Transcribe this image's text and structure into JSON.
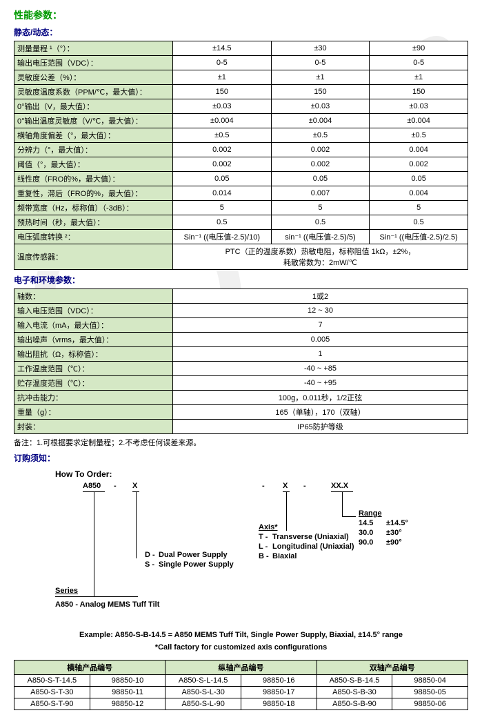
{
  "headings": {
    "perf": "性能参数：",
    "static_dynamic": "静态/动态：",
    "elec_env": "电子和环境参数：",
    "order": "订购须知："
  },
  "spec1": {
    "col_widths": [
      "230px",
      "auto",
      "auto",
      "auto"
    ],
    "rows": [
      {
        "label": "测量量程 ¹（°）：",
        "vals": [
          "±14.5",
          "±30",
          "±90"
        ]
      },
      {
        "label": "输出电压范围（VDC）：",
        "vals": [
          "0-5",
          "0-5",
          "0-5"
        ]
      },
      {
        "label": "灵敏度公差（%）：",
        "vals": [
          "±1",
          "±1",
          "±1"
        ]
      },
      {
        "label": "灵敏度温度系数（PPM/℃，最大值）：",
        "vals": [
          "150",
          "150",
          "150"
        ]
      },
      {
        "label": "0°输出（V，最大值）：",
        "vals": [
          "±0.03",
          "±0.03",
          "±0.03"
        ]
      },
      {
        "label": "0°输出温度灵敏度（V/℃，最大值）：",
        "vals": [
          "±0.004",
          "±0.004",
          "±0.004"
        ]
      },
      {
        "label": "横轴角度偏差（°，最大值）：",
        "vals": [
          "±0.5",
          "±0.5",
          "±0.5"
        ]
      },
      {
        "label": "分辨力（°，最大值）：",
        "vals": [
          "0.002",
          "0.002",
          "0.004"
        ]
      },
      {
        "label": "阈值（°，最大值）：",
        "vals": [
          "0.002",
          "0.002",
          "0.002"
        ]
      },
      {
        "label": "线性度（FRO的%，最大值）：",
        "vals": [
          "0.05",
          "0.05",
          "0.05"
        ]
      },
      {
        "label": "重复性，滞后（FRO的%，最大值）：",
        "vals": [
          "0.014",
          "0.007",
          "0.004"
        ]
      },
      {
        "label": "频带宽度（Hz，标称值）（-3dB）：",
        "vals": [
          "5",
          "5",
          "5"
        ]
      },
      {
        "label": "预热时间（秒，最大值）：",
        "vals": [
          "0.5",
          "0.5",
          "0.5"
        ]
      },
      {
        "label": "电压弧度转换 ²：",
        "vals": [
          "Sin⁻¹ ((电压值-2.5)/10)",
          "sin⁻¹ ((电压值-2.5)/5)",
          "Sin⁻¹ ((电压值-2.5)/2.5)"
        ]
      }
    ],
    "sensor_row": {
      "label": "温度传感器：",
      "val": "PTC（正的温度系数）热敏电阻，标称阻值 1kΩ，±2%，\n耗散常数为：2mW/℃"
    }
  },
  "spec2": {
    "rows": [
      {
        "label": "轴数：",
        "val": "1或2"
      },
      {
        "label": "输入电压范围（VDC）：",
        "val": "12 ~ 30"
      },
      {
        "label": "输入电流（mA，最大值）：",
        "val": "7"
      },
      {
        "label": "输出噪声（vrms，最大值）：",
        "val": "0.005"
      },
      {
        "label": "输出阻抗（Ω，标称值）：",
        "val": "1"
      },
      {
        "label": "工作温度范围（℃）：",
        "val": "-40 ~ +85"
      },
      {
        "label": "贮存温度范围（℃）：",
        "val": "-40 ~ +95"
      },
      {
        "label": "抗冲击能力：",
        "val": "100g，0.011秒，1/2正弦"
      },
      {
        "label": "重量（g）：",
        "val": "165（单轴），170（双轴）"
      },
      {
        "label": "封装：",
        "val": "IP65防护等级"
      }
    ]
  },
  "footnote": "备注：1.可根据要求定制量程；2.不考虑任何误差来源。",
  "order": {
    "how": "How To Order:",
    "pattern": "A850   -      X                               -       X      -         XX.X",
    "range_label": "Range",
    "range_rows": [
      [
        "14.5",
        "±14.5°"
      ],
      [
        "30.0",
        "±30°"
      ],
      [
        "90.0",
        "±90°"
      ]
    ],
    "axis_label": "Axis*",
    "axis_rows": [
      [
        "T -",
        "Transverse (Uniaxial)"
      ],
      [
        "L -",
        "Longitudinal (Uniaxial)"
      ],
      [
        "B -",
        "Biaxial"
      ]
    ],
    "power_rows": [
      [
        "D -",
        "Dual Power Supply"
      ],
      [
        "S -",
        "Single Power Supply"
      ]
    ],
    "series_label": "Series",
    "series_desc": "A850 - Analog MEMS Tuff Tilt",
    "example": "Example:  A850-S-B-14.5 = A850 MEMS Tuff Tilt, Single Power Supply, Biaxial, ±14.5° range",
    "callfactory": "*Call factory for customized axis configurations"
  },
  "pn_table": {
    "headers": [
      "横轴产品编号",
      "纵轴产品编号",
      "双轴产品编号"
    ],
    "rows": [
      [
        "A850-S-T-14.5",
        "98850-10",
        "A850-S-L-14.5",
        "98850-16",
        "A850-S-B-14.5",
        "98850-04"
      ],
      [
        "A850-S-T-30",
        "98850-11",
        "A850-S-L-30",
        "98850-17",
        "A850-S-B-30",
        "98850-05"
      ],
      [
        "A850-S-T-90",
        "98850-12",
        "A850-S-L-90",
        "98850-18",
        "A850-S-B-90",
        "98850-06"
      ]
    ]
  },
  "colors": {
    "green": "#009900",
    "blue": "#000080",
    "header_bg": "#d5e8c5"
  }
}
